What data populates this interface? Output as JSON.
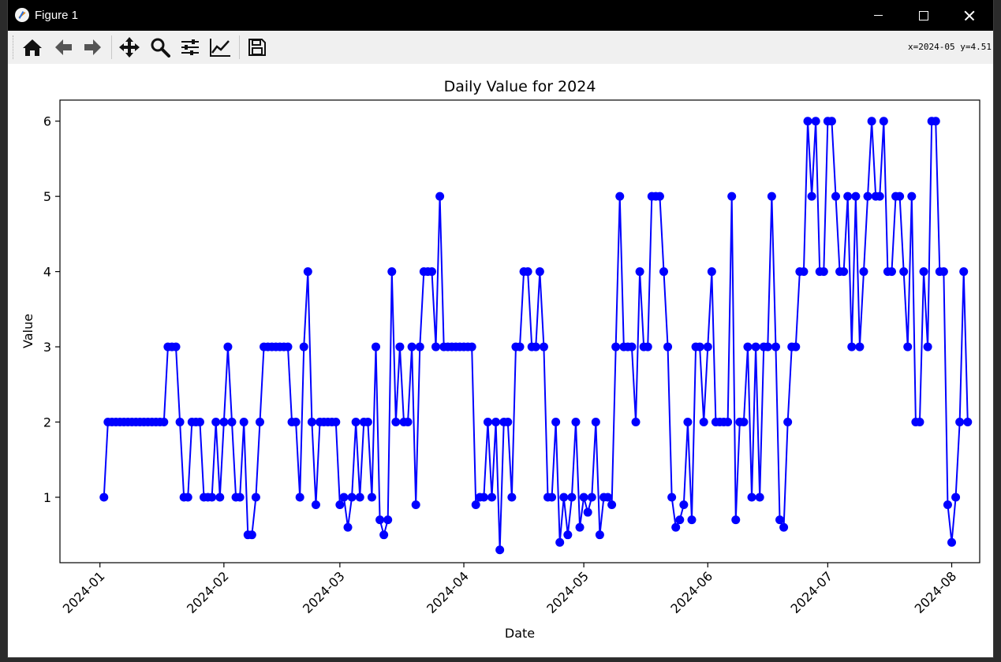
{
  "window": {
    "title": "Figure 1"
  },
  "toolbar": {
    "buttons": [
      "home-icon",
      "back-icon",
      "forward-icon",
      "pan-icon",
      "zoom-icon",
      "configure-subplots-icon",
      "edit-axis-icon",
      "save-icon"
    ],
    "coords": "x=2024-05 y=4.51"
  },
  "colors": {
    "series": "#0000ff",
    "titlebar": "#000000",
    "toolbar": "#f0f0f0"
  },
  "chart_data": {
    "type": "line",
    "title": "Daily Value for 2024",
    "xlabel": "Date",
    "ylabel": "Value",
    "x_tick_labels": [
      "2024-01",
      "2024-02",
      "2024-03",
      "2024-04",
      "2024-05",
      "2024-06",
      "2024-07",
      "2024-08"
    ],
    "y_ticks": [
      1,
      2,
      3,
      4,
      5,
      6
    ],
    "xlim": [
      "2023-12-22",
      "2024-08-08"
    ],
    "ylim": [
      0.13,
      6.28
    ],
    "grid": false,
    "marker": "circle",
    "x_start": "2024-01-02",
    "x_step_days": 1,
    "series": [
      {
        "values": [
          1,
          2,
          2,
          2,
          2,
          2,
          2,
          2,
          2,
          2,
          2,
          2,
          2,
          2,
          2,
          2,
          3,
          3,
          3,
          2,
          1,
          1,
          2,
          2,
          2,
          1,
          1,
          1,
          2,
          1,
          2,
          3,
          2,
          1,
          1,
          2,
          0.5,
          0.5,
          1,
          2,
          3,
          3,
          3,
          3,
          3,
          3,
          3,
          2,
          2,
          1,
          3,
          4,
          2,
          0.9,
          2,
          2,
          2,
          2,
          2,
          0.9,
          1,
          0.6,
          1,
          2,
          1,
          2,
          2,
          1,
          3,
          0.7,
          0.5,
          0.7,
          4,
          2,
          3,
          2,
          2,
          3,
          0.9,
          3,
          4,
          4,
          4,
          3,
          5,
          3,
          3,
          3,
          3,
          3,
          3,
          3,
          3,
          0.9,
          1,
          1,
          2,
          1,
          2,
          0.3,
          2,
          2,
          1,
          3,
          3,
          4,
          4,
          3,
          3,
          4,
          3,
          1,
          1,
          2,
          0.4,
          1,
          0.5,
          1,
          2,
          0.6,
          1,
          0.8,
          1,
          2,
          0.5,
          1,
          1,
          0.9,
          3,
          5,
          3,
          3,
          3,
          2,
          4,
          3,
          3,
          5,
          5,
          5,
          4,
          3,
          1,
          0.6,
          0.7,
          0.9,
          2,
          0.7,
          3,
          3,
          2,
          3,
          4,
          2,
          2,
          2,
          2,
          5,
          0.7,
          2,
          2,
          3,
          1,
          3,
          1,
          3,
          3,
          5,
          3,
          0.7,
          0.6,
          2,
          3,
          3,
          4,
          4,
          6,
          5,
          6,
          4,
          4,
          6,
          6,
          5,
          4,
          4,
          5,
          3,
          5,
          3,
          4,
          5,
          6,
          5,
          5,
          6,
          4,
          4,
          5,
          5,
          4,
          3,
          5,
          2,
          2,
          4,
          3,
          6,
          6,
          4,
          4,
          0.9,
          0.4,
          1,
          2,
          4,
          2
        ]
      }
    ]
  }
}
